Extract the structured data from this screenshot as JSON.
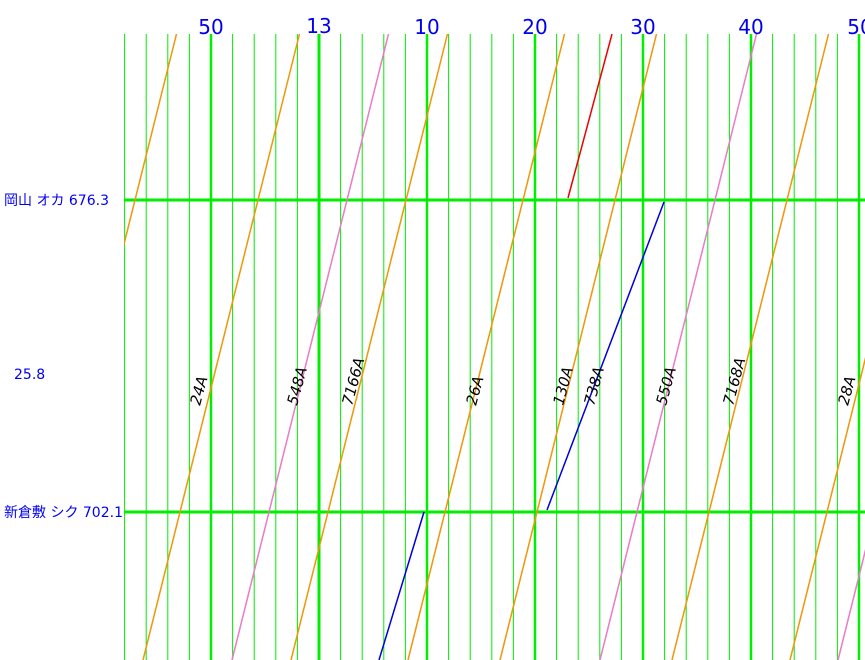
{
  "time_labels": [
    "50",
    "13",
    "10",
    "20",
    "30",
    "40",
    "50"
  ],
  "stations": [
    {
      "label": "岡山 オカ 676.3"
    },
    {
      "label": "新倉敷 シク 702.1"
    }
  ],
  "distance": "25.8",
  "trains": [
    "24A",
    "548A",
    "7166A",
    "26A",
    "130A",
    "738A",
    "550A",
    "7168A",
    "28A"
  ]
}
